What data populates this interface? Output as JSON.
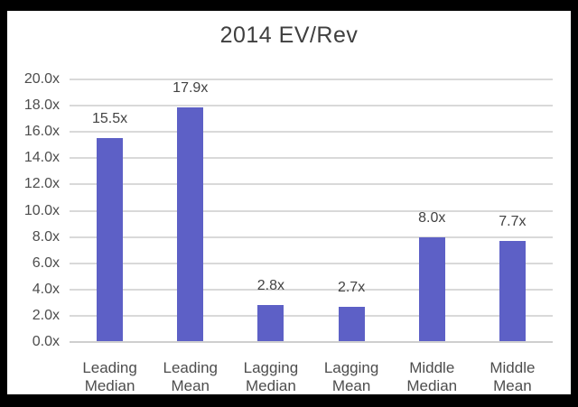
{
  "chart_data": {
    "type": "bar",
    "title": "2014 EV/Rev",
    "categories": [
      [
        "Leading",
        "Median"
      ],
      [
        "Leading",
        "Mean"
      ],
      [
        "Lagging",
        "Median"
      ],
      [
        "Lagging",
        "Mean"
      ],
      [
        "Middle",
        "Median"
      ],
      [
        "Middle",
        "Mean"
      ]
    ],
    "values": [
      15.5,
      17.9,
      2.8,
      2.7,
      8.0,
      7.7
    ],
    "value_labels": [
      "15.5x",
      "17.9x",
      "2.8x",
      "2.7x",
      "8.0x",
      "7.7x"
    ],
    "y_ticks": [
      "20.0x",
      "18.0x",
      "16.0x",
      "14.0x",
      "12.0x",
      "10.0x",
      "8.0x",
      "6.0x",
      "4.0x",
      "2.0x",
      "0.0x"
    ],
    "ylim": [
      0,
      20
    ],
    "xlabel": "",
    "ylabel": "",
    "legend": "none",
    "grid": true,
    "colors": {
      "bar": "#5D60C6",
      "gridline": "#D9D9D9",
      "axis_line": "#CFCFCF",
      "title_text": "#3F3F3F",
      "axis_text": "#4D4D4D",
      "value_label_text": "#424242",
      "frame": "#000000",
      "background": "#FFFFFF"
    }
  }
}
